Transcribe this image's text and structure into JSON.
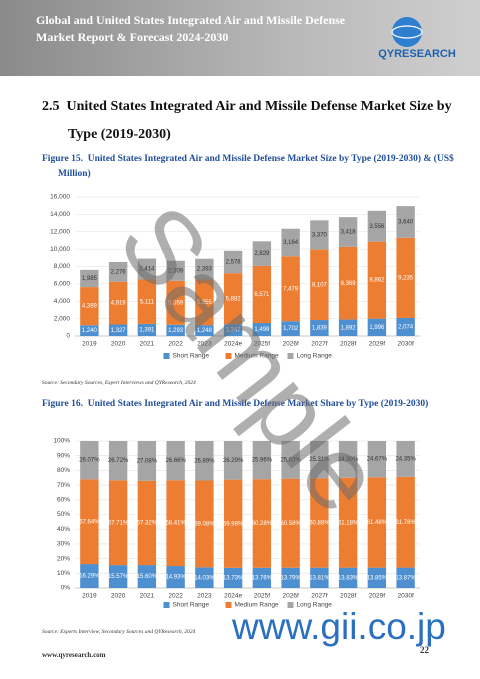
{
  "header": {
    "title": "Global and United States Integrated Air and Missile Defense Market Report & Forecast 2024-2030",
    "logo": "QYRESEARCH"
  },
  "section": {
    "number": "2.5",
    "title": "United States Integrated Air and Missile Defense Market Size by Type (2019-2030)"
  },
  "figures": [
    {
      "label": "Figure 15.",
      "source": "Source: Secondary Sources, Expert Interviews and QYResearch, 2024"
    },
    {
      "label": "Figure 16.",
      "source": "Source: Experts Interview, Secondary Sources and QYResearch, 2024"
    }
  ],
  "chart_data": [
    {
      "type": "stacked_bar",
      "title": "United States Integrated Air and Missile Defense Market Size by Type (2019-2030) & (US$ Million)",
      "categories": [
        "2019",
        "2020",
        "2021",
        "2022",
        "2023",
        "2024e",
        "2025f",
        "2026f",
        "2027f",
        "2028f",
        "2029f",
        "2030f"
      ],
      "series": [
        {
          "name": "Short Range",
          "color": "#4e8fd0",
          "values": [
            1240,
            1327,
            1391,
            1293,
            1248,
            1347,
            1499,
            1702,
            1839,
            1892,
            1996,
            2074
          ],
          "value_labels": [
            "1,240",
            "1,327",
            "1,391",
            "1,293",
            "1,248",
            "1,347",
            "1,499",
            "1,702",
            "1,839",
            "1,892",
            "1,996",
            "2,074"
          ]
        },
        {
          "name": "Medium Range",
          "color": "#ed7d31",
          "values": [
            4389,
            4919,
            5111,
            5059,
            5255,
            5882,
            6571,
            7479,
            8107,
            8369,
            8862,
            9235
          ],
          "value_labels": [
            "4,389",
            "4,919",
            "5,111",
            "5,059",
            "5,255",
            "5,882",
            "6,571",
            "7,479",
            "8,107",
            "8,369",
            "8,862",
            "9,235"
          ]
        },
        {
          "name": "Long Range",
          "color": "#a5a5a5",
          "values": [
            1985,
            2276,
            2414,
            2309,
            2393,
            2578,
            2829,
            3164,
            3370,
            3418,
            3556,
            3640
          ],
          "value_labels": [
            "1,985",
            "2,276",
            "2,414",
            "2,309",
            "2,393",
            "2,578",
            "2,829",
            "3,164",
            "3,370",
            "3,418",
            "3,556",
            "3,640"
          ]
        }
      ],
      "ylim": [
        0,
        16000
      ],
      "yticks": [
        0,
        {
          "value": 2000,
          "label": "2,000"
        },
        {
          "value": 4000,
          "label": "4,000"
        },
        {
          "value": 6000,
          "label": "6,000"
        },
        {
          "value": 8000,
          "label": "8,000"
        },
        {
          "value": 10000,
          "label": "10,000"
        },
        {
          "value": 12000,
          "label": "12,000"
        },
        {
          "value": 14000,
          "label": "14,000"
        },
        {
          "value": 16000,
          "label": "16,000"
        }
      ],
      "grid": true,
      "legend": "bottom"
    },
    {
      "type": "stacked_bar",
      "title": "United States Integrated Air and Missile Defense Market Share by Type (2019-2030)",
      "categories": [
        "2019",
        "2020",
        "2021",
        "2022",
        "2023",
        "2024e",
        "2025f",
        "2026f",
        "2027f",
        "2028f",
        "2029f",
        "2030f"
      ],
      "series": [
        {
          "name": "Short Range",
          "color": "#4e8fd0",
          "values": [
            16.29,
            15.57,
            15.6,
            14.93,
            14.03,
            13.73,
            13.76,
            13.79,
            13.81,
            13.83,
            13.85,
            13.87
          ],
          "value_labels": [
            "16.29%",
            "15.57%",
            "15.60%",
            "14.93%",
            "14.03%",
            "13.73%",
            "13.76%",
            "13.79%",
            "13.81%",
            "13.83%",
            "13.85%",
            "13.87%"
          ]
        },
        {
          "name": "Medium Range",
          "color": "#ed7d31",
          "values": [
            57.64,
            57.71,
            57.32,
            58.41,
            59.08,
            59.98,
            60.28,
            60.58,
            60.88,
            61.18,
            61.48,
            61.78
          ],
          "value_labels": [
            "57.64%",
            "57.71%",
            "57.32%",
            "58.41%",
            "59.08%",
            "59.98%",
            "60.28%",
            "60.58%",
            "60.88%",
            "61.18%",
            "61.48%",
            "61.78%"
          ]
        },
        {
          "name": "Long Range",
          "color": "#a5a5a5",
          "values": [
            26.07,
            26.72,
            27.08,
            26.66,
            26.89,
            26.29,
            25.96,
            25.63,
            25.31,
            24.99,
            24.67,
            24.35
          ],
          "value_labels": [
            "26.07%",
            "26.72%",
            "27.08%",
            "26.66%",
            "26.89%",
            "26.29%",
            "25.96%",
            "25.63%",
            "25.31%",
            "24.99%",
            "24.67%",
            "24.35%"
          ]
        }
      ],
      "ylim": [
        0,
        100
      ],
      "yticks": [
        {
          "value": 0,
          "label": "0%"
        },
        {
          "value": 10,
          "label": "10%"
        },
        {
          "value": 20,
          "label": "20%"
        },
        {
          "value": 30,
          "label": "30%"
        },
        {
          "value": 40,
          "label": "40%"
        },
        {
          "value": 50,
          "label": "50%"
        },
        {
          "value": 60,
          "label": "60%"
        },
        {
          "value": 70,
          "label": "70%"
        },
        {
          "value": 80,
          "label": "80%"
        },
        {
          "value": 90,
          "label": "90%"
        },
        {
          "value": 100,
          "label": "100%"
        }
      ],
      "grid": true,
      "legend": "bottom"
    }
  ],
  "footer": {
    "url": "www.qyresearch.com",
    "page": "22"
  },
  "watermark": {
    "text": "Sample",
    "site": "www.gii.co.jp"
  }
}
